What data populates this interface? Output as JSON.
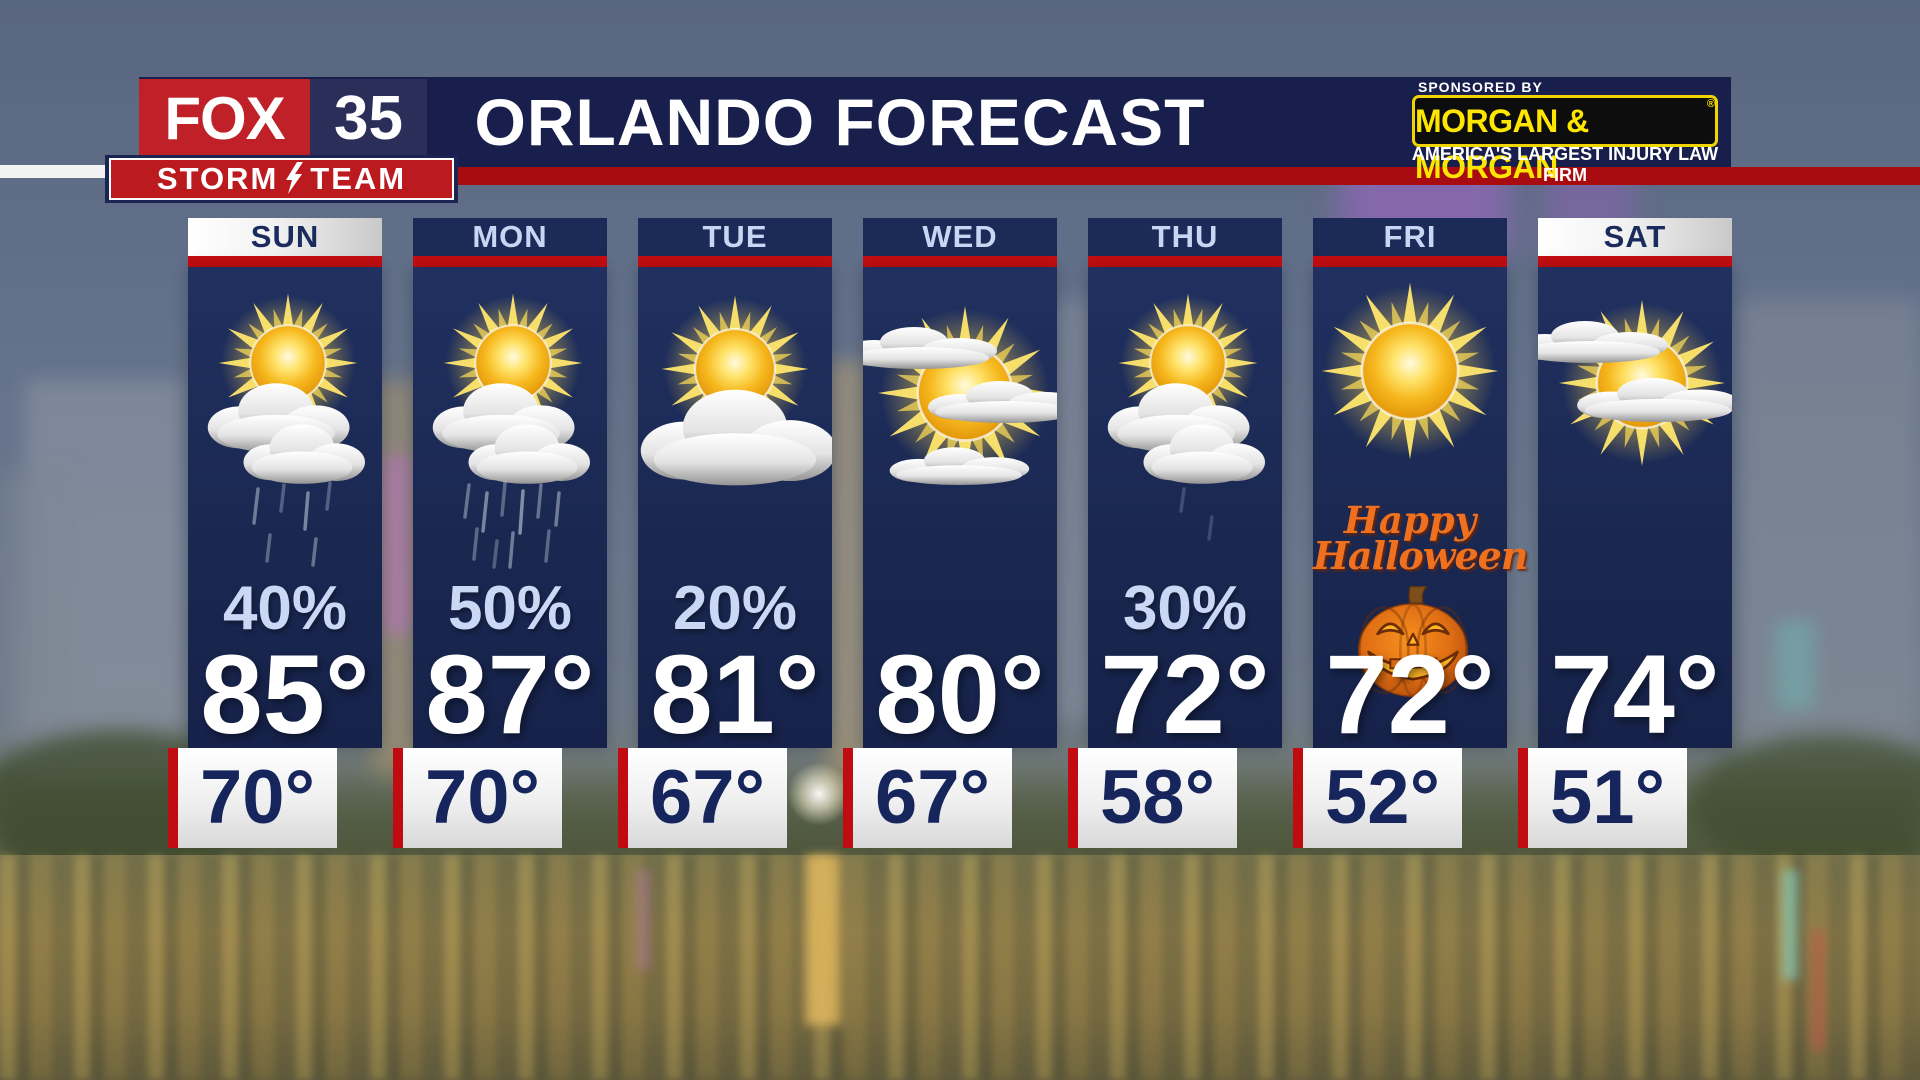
{
  "header": {
    "station": {
      "fox": "FOX",
      "channel": "35",
      "storm": "STORM",
      "team": "TEAM"
    },
    "title": "ORLANDO FORECAST",
    "sponsor": {
      "kicker": "SPONSORED BY",
      "name": "MORGAN & MORGAN",
      "reg": "®",
      "tagline": "AMERICA'S LARGEST INJURY LAW FIRM"
    }
  },
  "days": [
    {
      "label": "SUN",
      "pop": "40%",
      "high": "85°",
      "low": "70°",
      "icon": "sun-behind-clouds-rain-icon",
      "highlighted": true
    },
    {
      "label": "MON",
      "pop": "50%",
      "high": "87°",
      "low": "70°",
      "icon": "sun-behind-clouds-rain-icon",
      "highlighted": false
    },
    {
      "label": "TUE",
      "pop": "20%",
      "high": "81°",
      "low": "67°",
      "icon": "sun-behind-cloud-icon",
      "highlighted": false
    },
    {
      "label": "WED",
      "pop": "",
      "high": "80°",
      "low": "67°",
      "icon": "sun-with-clouds-icon",
      "highlighted": false
    },
    {
      "label": "THU",
      "pop": "30%",
      "high": "72°",
      "low": "58°",
      "icon": "sun-behind-clouds-icon",
      "highlighted": false
    },
    {
      "label": "FRI",
      "pop": "",
      "high": "72°",
      "low": "52°",
      "icon": "sun-icon",
      "special_line1": "Happy",
      "special_line2": "Halloween",
      "special_graphic": "jack-o-lantern-icon",
      "highlighted": false
    },
    {
      "label": "SAT",
      "pop": "",
      "high": "74°",
      "low": "51°",
      "icon": "sun-with-clouds-left-icon",
      "highlighted": true
    }
  ],
  "colors": {
    "panel_navy": "#1b2a57",
    "header_navy": "#191f4d",
    "brand_red": "#c02128",
    "stripe_red": "#c60d12",
    "light_blue_text": "#c8d6f4",
    "sponsor_yellow": "#ffe600",
    "halloween_orange": "#ef7120"
  }
}
